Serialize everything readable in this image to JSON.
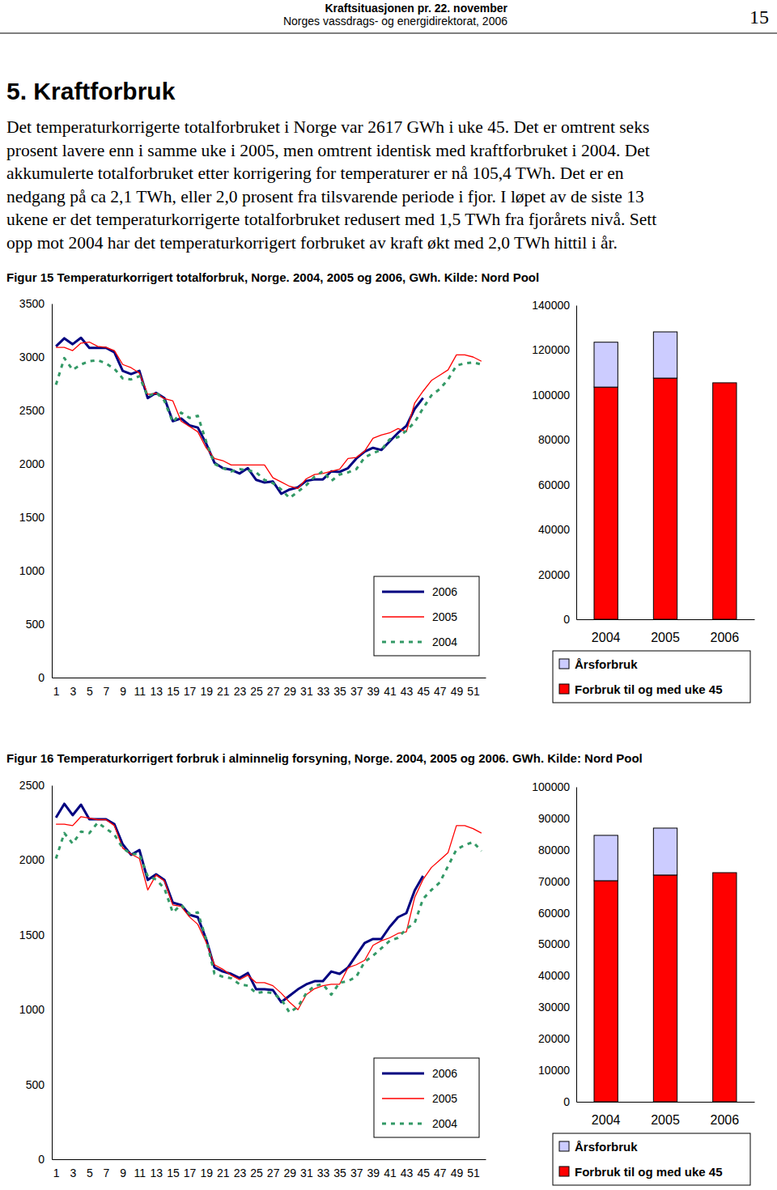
{
  "header": {
    "title": "Kraftsituasjonen pr. 22. november",
    "subtitle": "Norges vassdrags- og energidirektorat, 2006",
    "page": 15
  },
  "heading": "5. Kraftforbruk",
  "paragraph": [
    "Det temperaturkorrigerte totalforbruket i Norge var 2617 GWh i uke 45. Det er omtrent seks",
    "prosent lavere enn i samme uke i 2005, men omtrent identisk med kraftforbruket i 2004. Det",
    "akkumulerte totalforbruket etter korrigering for temperaturer er nå 105,4 TWh. Det er en",
    "nedgang på ca 2,1 TWh, eller 2,0 prosent fra tilsvarende periode i fjor. I løpet av de siste 13",
    "ukene er det temperaturkorrigerte totalforbruket redusert med 1,5 TWh fra fjorårets nivå. Sett",
    "opp mot 2004 har det temperaturkorrigert forbruket av kraft økt med 2,0 TWh hittil i år."
  ],
  "chart_data": [
    {
      "type": "line",
      "title": "Figur 15 Temperaturkorrigert totalforbruk, Norge. 2004, 2005 og 2006, GWh. Kilde: Nord Pool",
      "x": [
        1,
        2,
        3,
        4,
        5,
        6,
        7,
        8,
        9,
        10,
        11,
        12,
        13,
        14,
        15,
        16,
        17,
        18,
        19,
        20,
        21,
        22,
        23,
        24,
        25,
        26,
        27,
        28,
        29,
        30,
        31,
        32,
        33,
        34,
        35,
        36,
        37,
        38,
        39,
        40,
        41,
        42,
        43,
        44,
        45,
        46,
        47,
        48,
        49,
        50,
        51,
        52
      ],
      "xlim": [
        0.5,
        52.5
      ],
      "xticks": [
        1,
        3,
        5,
        7,
        9,
        11,
        13,
        15,
        17,
        19,
        21,
        23,
        25,
        27,
        29,
        31,
        33,
        35,
        37,
        39,
        41,
        43,
        45,
        47,
        49,
        51
      ],
      "ylim": [
        0,
        3500
      ],
      "yticks": [
        0,
        500,
        1000,
        1500,
        2000,
        2500,
        3000,
        3500
      ],
      "grid": false,
      "legend": "lower right",
      "series": [
        {
          "name": "2006",
          "color": "#000080",
          "line_style": "solid",
          "values": [
            3100,
            3175,
            3120,
            3180,
            3085,
            3085,
            3085,
            3045,
            2870,
            2840,
            2870,
            2615,
            2665,
            2615,
            2400,
            2425,
            2360,
            2340,
            2190,
            2010,
            1960,
            1945,
            1910,
            1960,
            1850,
            1825,
            1835,
            1720,
            1760,
            1780,
            1840,
            1855,
            1855,
            1930,
            1925,
            1960,
            2050,
            2115,
            2150,
            2130,
            2210,
            2290,
            2355,
            2515,
            2617,
            null,
            null,
            null,
            null,
            null,
            null,
            null
          ]
        },
        {
          "name": "2005",
          "color": "#ff0000",
          "line_style": "solid",
          "values": [
            3090,
            3090,
            3060,
            3130,
            3140,
            3100,
            3090,
            3060,
            2930,
            2900,
            2850,
            2650,
            2660,
            2610,
            2590,
            2400,
            2350,
            2300,
            2150,
            2050,
            2030,
            1990,
            1990,
            1990,
            1990,
            1990,
            1870,
            1830,
            1790,
            1770,
            1860,
            1900,
            1910,
            1930,
            1950,
            2050,
            2060,
            2120,
            2240,
            2270,
            2290,
            2330,
            2300,
            2570,
            2680,
            2780,
            2830,
            2880,
            3020,
            3020,
            3000,
            2960
          ]
        },
        {
          "name": "2004",
          "color": "#339966",
          "line_style": "dashed",
          "values": [
            2740,
            2990,
            2880,
            2930,
            2960,
            2970,
            2940,
            2890,
            2800,
            2790,
            2820,
            2630,
            2670,
            2590,
            2390,
            2480,
            2430,
            2450,
            2210,
            2000,
            1960,
            1930,
            1950,
            1940,
            1920,
            1850,
            1820,
            1760,
            1680,
            1740,
            1800,
            1880,
            1930,
            1840,
            1900,
            1920,
            1950,
            2060,
            2100,
            2130,
            2230,
            2250,
            2310,
            2390,
            2520,
            2640,
            2700,
            2790,
            2920,
            2940,
            2950,
            2930
          ]
        }
      ]
    },
    {
      "type": "bar",
      "categories": [
        "2004",
        "2005",
        "2006"
      ],
      "ylim": [
        0,
        140000
      ],
      "yticks": [
        0,
        20000,
        40000,
        60000,
        80000,
        100000,
        120000,
        140000
      ],
      "stacked": true,
      "grid": false,
      "legend": "bottom",
      "series": [
        {
          "name": "Forbruk til og med uke 45",
          "color": "#ff0000",
          "values": [
            103500,
            107500,
            105400
          ]
        },
        {
          "name": "Årsforbruk",
          "color": "#ccccff",
          "values": [
            20000,
            20600,
            null
          ]
        }
      ]
    },
    {
      "type": "line",
      "title": "Figur 16 Temperaturkorrigert forbruk i alminnelig forsyning, Norge. 2004, 2005 og 2006. GWh. Kilde: Nord Pool",
      "x": [
        1,
        2,
        3,
        4,
        5,
        6,
        7,
        8,
        9,
        10,
        11,
        12,
        13,
        14,
        15,
        16,
        17,
        18,
        19,
        20,
        21,
        22,
        23,
        24,
        25,
        26,
        27,
        28,
        29,
        30,
        31,
        32,
        33,
        34,
        35,
        36,
        37,
        38,
        39,
        40,
        41,
        42,
        43,
        44,
        45,
        46,
        47,
        48,
        49,
        50,
        51,
        52
      ],
      "xlim": [
        0.5,
        52.5
      ],
      "xticks": [
        1,
        3,
        5,
        7,
        9,
        11,
        13,
        15,
        17,
        19,
        21,
        23,
        25,
        27,
        29,
        31,
        33,
        35,
        37,
        39,
        41,
        43,
        45,
        47,
        49,
        51
      ],
      "ylim": [
        0,
        2500
      ],
      "yticks": [
        0,
        500,
        1000,
        1500,
        2000,
        2500
      ],
      "grid": false,
      "legend": "lower right",
      "series": [
        {
          "name": "2006",
          "color": "#000080",
          "line_style": "solid",
          "values": [
            2284,
            2376,
            2300,
            2370,
            2273,
            2273,
            2273,
            2240,
            2105,
            2035,
            2067,
            1867,
            1905,
            1867,
            1715,
            1700,
            1634,
            1618,
            1472,
            1282,
            1255,
            1239,
            1212,
            1245,
            1136,
            1136,
            1131,
            1050,
            1093,
            1136,
            1169,
            1190,
            1190,
            1255,
            1239,
            1282,
            1364,
            1445,
            1472,
            1472,
            1553,
            1618,
            1645,
            1797,
            1894,
            null,
            null,
            null,
            null,
            null,
            null,
            null
          ]
        },
        {
          "name": "2005",
          "color": "#ff0000",
          "line_style": "solid",
          "values": [
            2240,
            2240,
            2230,
            2290,
            2280,
            2270,
            2270,
            2230,
            2080,
            2040,
            2010,
            1800,
            1900,
            1860,
            1700,
            1690,
            1620,
            1570,
            1450,
            1300,
            1270,
            1230,
            1200,
            1230,
            1180,
            1180,
            1160,
            1110,
            1050,
            1000,
            1100,
            1140,
            1160,
            1170,
            1170,
            1280,
            1300,
            1330,
            1430,
            1460,
            1480,
            1510,
            1520,
            1750,
            1870,
            1950,
            2000,
            2050,
            2230,
            2230,
            2210,
            2180
          ]
        },
        {
          "name": "2004",
          "color": "#339966",
          "line_style": "dashed",
          "values": [
            2010,
            2180,
            2110,
            2190,
            2180,
            2250,
            2210,
            2170,
            2080,
            2040,
            2040,
            1890,
            1870,
            1810,
            1650,
            1700,
            1640,
            1650,
            1470,
            1240,
            1220,
            1210,
            1170,
            1160,
            1110,
            1120,
            1110,
            1070,
            980,
            1020,
            1110,
            1160,
            1170,
            1100,
            1180,
            1190,
            1220,
            1320,
            1360,
            1410,
            1460,
            1480,
            1540,
            1580,
            1740,
            1800,
            1850,
            1960,
            2070,
            2100,
            2120,
            2060
          ]
        }
      ]
    },
    {
      "type": "bar",
      "categories": [
        "2004",
        "2005",
        "2006"
      ],
      "ylim": [
        0,
        100000
      ],
      "yticks": [
        0,
        10000,
        20000,
        30000,
        40000,
        50000,
        60000,
        70000,
        80000,
        90000,
        100000
      ],
      "stacked": true,
      "grid": false,
      "legend": "bottom",
      "series": [
        {
          "name": "Forbruk til og med uke 45",
          "color": "#ff0000",
          "values": [
            70200,
            72000,
            72750
          ]
        },
        {
          "name": "Årsforbruk",
          "color": "#ccccff",
          "values": [
            14400,
            14900,
            null
          ]
        }
      ]
    }
  ]
}
